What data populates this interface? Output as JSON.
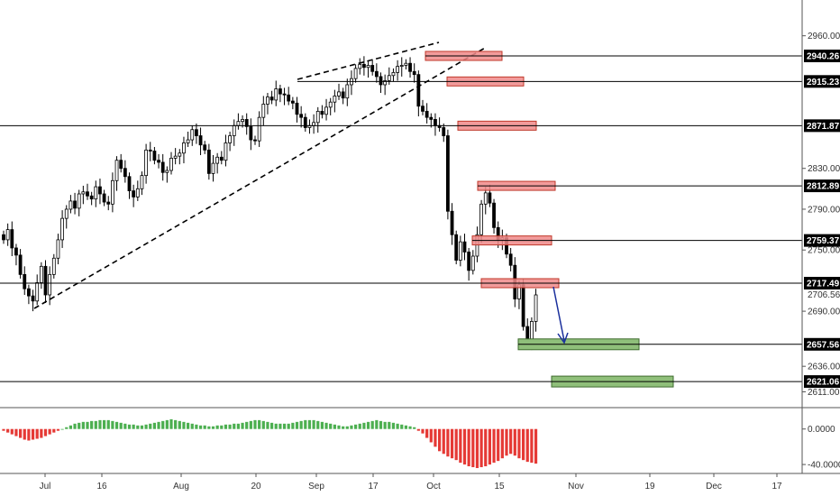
{
  "chart_data": [
    {
      "type": "candlestick",
      "y_ticks": [
        "2960.00",
        "2830.00",
        "2790.00",
        "2750.00",
        "2690.00",
        "2636.00",
        "2611.00"
      ],
      "x_ticks": [
        "Jul",
        "16",
        "Aug",
        "20",
        "Sep",
        "17",
        "Oct",
        "15",
        "Nov",
        "19",
        "Dec",
        "17"
      ],
      "current_price": "2706.56",
      "ylim": [
        2600,
        2980
      ],
      "horizontal_levels": [
        {
          "label": "2940.26",
          "value": 2940.26
        },
        {
          "label": "2915.23",
          "value": 2915.23
        },
        {
          "label": "2871.87",
          "value": 2871.87
        },
        {
          "label": "2812.89",
          "value": 2812.89
        },
        {
          "label": "2759.37",
          "value": 2759.37
        },
        {
          "label": "2717.49",
          "value": 2717.49
        },
        {
          "label": "2657.56",
          "value": 2657.56
        },
        {
          "label": "2621.06",
          "value": 2621.06
        }
      ],
      "resistance_zones": [
        {
          "value": 2940.26
        },
        {
          "value": 2915.23
        },
        {
          "value": 2871.87
        },
        {
          "value": 2812.89
        },
        {
          "value": 2759.37
        },
        {
          "value": 2717.49
        }
      ],
      "support_zones": [
        {
          "value": 2657.56
        },
        {
          "value": 2621.06
        }
      ],
      "trend_channel": "dashed rising wedge from early July to early October",
      "projection_arrow": "down from 2717.49 toward 2657.56",
      "candles_close": [
        2760,
        2770,
        2752,
        2745,
        2726,
        2712,
        2705,
        2700,
        2718,
        2734,
        2706,
        2726,
        2742,
        2760,
        2781,
        2790,
        2798,
        2791,
        2805,
        2807,
        2803,
        2800,
        2812,
        2805,
        2797,
        2795,
        2818,
        2838,
        2830,
        2822,
        2808,
        2802,
        2810,
        2823,
        2848,
        2847,
        2838,
        2836,
        2826,
        2828,
        2840,
        2842,
        2845,
        2855,
        2858,
        2868,
        2862,
        2853,
        2848,
        2825,
        2835,
        2841,
        2838,
        2855,
        2862,
        2872,
        2876,
        2878,
        2871,
        2858,
        2857,
        2880,
        2893,
        2900,
        2897,
        2908,
        2903,
        2902,
        2896,
        2894,
        2883,
        2880,
        2870,
        2872,
        2875,
        2886,
        2883,
        2890,
        2895,
        2901,
        2905,
        2899,
        2912,
        2918,
        2928,
        2932,
        2929,
        2931,
        2925,
        2920,
        2912,
        2916,
        2921,
        2924,
        2930,
        2931,
        2933,
        2925,
        2922,
        2891,
        2886,
        2880,
        2878,
        2872,
        2870,
        2862,
        2788,
        2765,
        2740,
        2758,
        2748,
        2730,
        2744,
        2765,
        2795,
        2806,
        2796,
        2772,
        2760,
        2762,
        2746,
        2735,
        2702,
        2716,
        2675,
        2660,
        2680,
        2706
      ],
      "volatility_oscillator": {
        "labels": [
          "0.0000",
          "-40.0000"
        ],
        "range": [
          -45,
          18
        ],
        "values": [
          -2,
          -4,
          -6,
          -8,
          -10,
          -12,
          -13,
          -12,
          -11,
          -10,
          -8,
          -6,
          -4,
          -2,
          0,
          2,
          4,
          6,
          7,
          8,
          8,
          9,
          9,
          10,
          10,
          10,
          9,
          8,
          7,
          6,
          5,
          5,
          4,
          4,
          5,
          6,
          7,
          8,
          9,
          10,
          11,
          10,
          9,
          8,
          7,
          6,
          5,
          4,
          4,
          3,
          3,
          4,
          4,
          5,
          5,
          6,
          6,
          7,
          8,
          9,
          10,
          10,
          9,
          8,
          7,
          6,
          6,
          6,
          6,
          7,
          8,
          9,
          10,
          10,
          10,
          9,
          8,
          7,
          6,
          5,
          4,
          3,
          3,
          4,
          5,
          6,
          7,
          8,
          9,
          10,
          9,
          8,
          8,
          7,
          6,
          5,
          4,
          3,
          2,
          -2,
          -5,
          -10,
          -15,
          -20,
          -25,
          -28,
          -31,
          -33,
          -35,
          -38,
          -40,
          -42,
          -43,
          -44,
          -43,
          -42,
          -40,
          -38,
          -36,
          -33,
          -30,
          -28,
          -30,
          -33,
          -35,
          -37,
          -38,
          -39
        ]
      }
    }
  ]
}
